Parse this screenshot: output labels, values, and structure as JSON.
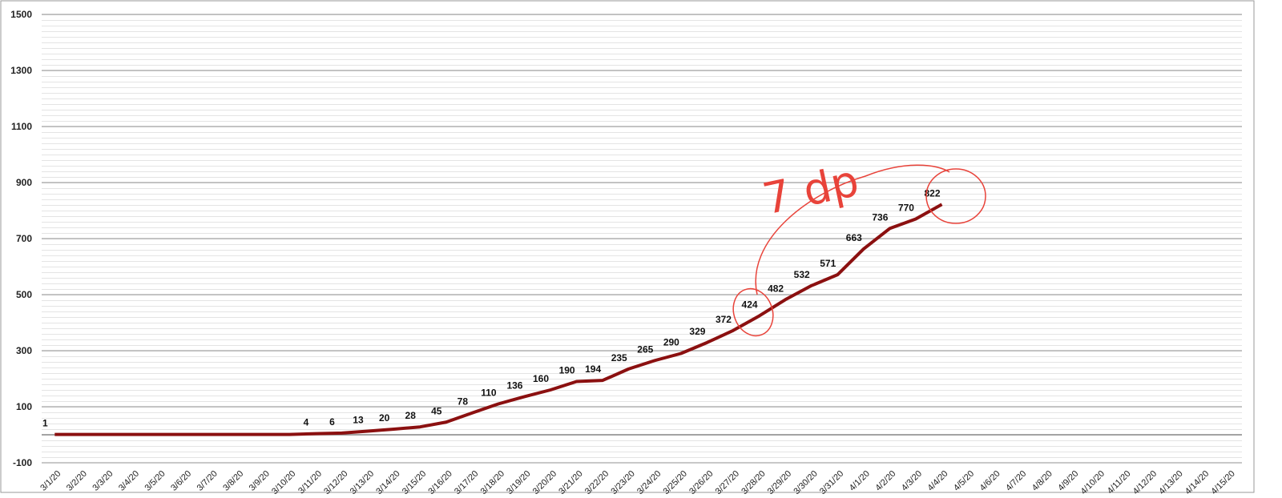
{
  "chart_data": {
    "type": "line",
    "categories": [
      "3/1/20",
      "3/2/20",
      "3/3/20",
      "3/4/20",
      "3/5/20",
      "3/6/20",
      "3/7/20",
      "3/8/20",
      "3/9/20",
      "3/10/20",
      "3/11/20",
      "3/12/20",
      "3/13/20",
      "3/14/20",
      "3/15/20",
      "3/16/20",
      "3/17/20",
      "3/18/20",
      "3/19/20",
      "3/20/20",
      "3/21/20",
      "3/22/20",
      "3/23/20",
      "3/24/20",
      "3/25/20",
      "3/26/20",
      "3/27/20",
      "3/28/20",
      "3/29/20",
      "3/30/20",
      "3/31/20",
      "4/1/20",
      "4/2/20",
      "4/3/20",
      "4/4/20",
      "4/5/20",
      "4/6/20",
      "4/7/20",
      "4/8/20",
      "4/9/20",
      "4/10/20",
      "4/11/20",
      "4/12/20",
      "4/13/20",
      "4/14/20",
      "4/15/20"
    ],
    "series": [
      {
        "color": "#8b1010",
        "values": [
          1,
          1,
          1,
          1,
          1,
          1,
          1,
          1,
          1,
          1,
          4,
          6,
          13,
          20,
          28,
          45,
          78,
          110,
          136,
          160,
          190,
          194,
          235,
          265,
          290,
          329,
          372,
          424,
          482,
          532,
          571,
          663,
          736,
          770,
          822,
          null,
          null,
          null,
          null,
          null,
          null,
          null,
          null,
          null,
          null,
          null
        ],
        "value_labels": [
          "1",
          null,
          null,
          null,
          null,
          null,
          null,
          null,
          null,
          null,
          "4",
          "6",
          "13",
          "20",
          "28",
          "45",
          "78",
          "110",
          "136",
          "160",
          "190",
          "194",
          "235",
          "265",
          "290",
          "329",
          "372",
          "424",
          "482",
          "532",
          "571",
          "663",
          "736",
          "770",
          "822",
          null,
          null,
          null,
          null,
          null,
          null,
          null,
          null,
          null,
          null,
          null
        ]
      }
    ],
    "ylim": [
      -100,
      1500
    ],
    "yticks": [
      -100,
      100,
      300,
      500,
      700,
      900,
      1100,
      1300,
      1500
    ],
    "grid": true,
    "annotation": "7 dp"
  }
}
